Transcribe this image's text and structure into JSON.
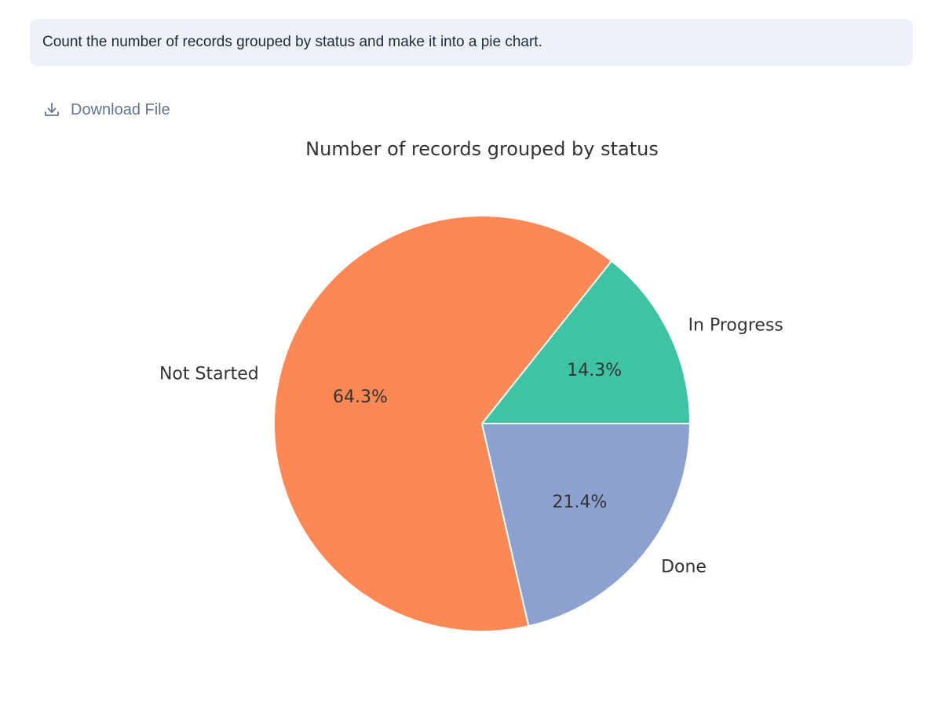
{
  "prompt": {
    "text": "Count the number of records grouped by status and make it into a pie chart."
  },
  "download": {
    "label": "Download File",
    "icon": "download-icon"
  },
  "chart_data": {
    "type": "pie",
    "title": "Number of records grouped by status",
    "start_angle_deg": 0,
    "direction": "counterclockwise",
    "slices": [
      {
        "label": "In Progress",
        "value": 14.3,
        "pct_label": "14.3%",
        "color": "#3ec4a2"
      },
      {
        "label": "Not Started",
        "value": 64.3,
        "pct_label": "64.3%",
        "color": "#fc8856"
      },
      {
        "label": "Done",
        "value": 21.4,
        "pct_label": "21.4%",
        "color": "#8ca1cf"
      }
    ]
  }
}
